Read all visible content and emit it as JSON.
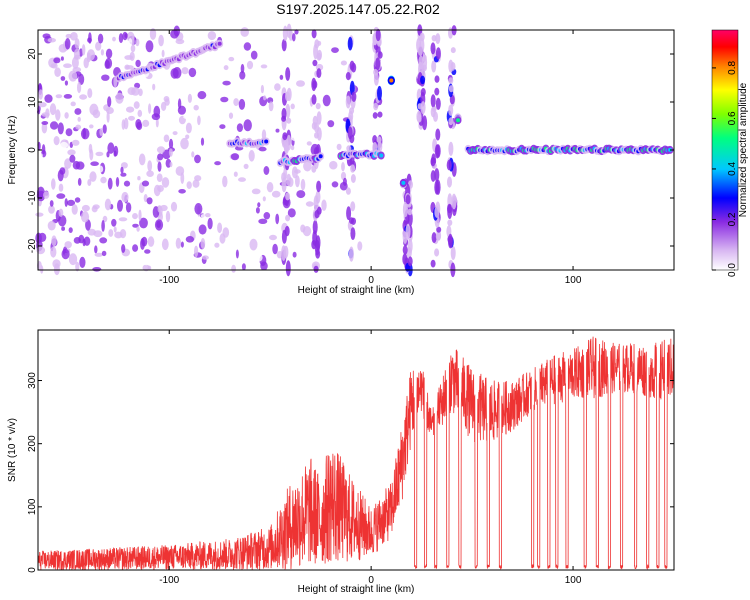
{
  "title": "S197.2025.147.05.22.R02",
  "chart_data": [
    {
      "type": "heatmap",
      "title": "S197.2025.147.05.22.R02",
      "xlabel": "Height of straight line (km)",
      "ylabel": "Frequency (Hz)",
      "xlim": [
        -165,
        150
      ],
      "ylim": [
        -25,
        25
      ],
      "xticks": [
        -100,
        0,
        100
      ],
      "yticks": [
        -20,
        -10,
        0,
        10,
        20
      ],
      "grid": false,
      "colorbar": {
        "label": "Normalized spectral amplitude",
        "range": [
          0,
          0.95
        ],
        "ticks": [
          0.0,
          0.2,
          0.4,
          0.6,
          0.8
        ],
        "colormap": [
          "#ffffff",
          "#d9b8f2",
          "#8a2be2",
          "#0000ff",
          "#00c8ff",
          "#00ff80",
          "#80ff00",
          "#ffff00",
          "#ff8000",
          "#ff0000",
          "#ff0066"
        ]
      },
      "features": [
        {
          "name": "diagonal streak",
          "x": [
            -125,
            -75
          ],
          "y": [
            15,
            22
          ],
          "amplitude": 0.25
        },
        {
          "name": "central band left",
          "x": [
            -70,
            -52
          ],
          "y": [
            1.5,
            1.5
          ],
          "amplitude": 0.35
        },
        {
          "name": "central band blob",
          "x": [
            -45,
            -25
          ],
          "y": [
            -2.5,
            -1.5
          ],
          "amplitude": 0.4
        },
        {
          "name": "central band blob",
          "x": [
            -15,
            5
          ],
          "y": [
            -1,
            -1
          ],
          "amplitude": 0.4
        },
        {
          "name": "spike",
          "x": [
            10,
            10
          ],
          "y": [
            14.5,
            14.5
          ],
          "amplitude": 0.9
        },
        {
          "name": "spike",
          "x": [
            16,
            16
          ],
          "y": [
            -7,
            -7
          ],
          "amplitude": 0.45
        },
        {
          "name": "spike",
          "x": [
            43,
            43
          ],
          "y": [
            6.5,
            6.5
          ],
          "amplitude": 0.45
        },
        {
          "name": "zero band",
          "x": [
            48,
            148
          ],
          "y": [
            0,
            0
          ],
          "amplitude": 0.45
        }
      ]
    },
    {
      "type": "line",
      "xlabel": "Height of straight line (km)",
      "ylabel": "SNR (10 * v/v)",
      "xlim": [
        -165,
        150
      ],
      "ylim": [
        0,
        380
      ],
      "xticks": [
        -100,
        0,
        100
      ],
      "yticks": [
        0,
        100,
        200,
        300
      ],
      "grid": false,
      "color": "#ee3333",
      "envelope": {
        "x": [
          -165,
          -100,
          -70,
          -50,
          -40,
          -30,
          -25,
          -20,
          -10,
          0,
          10,
          15,
          20,
          25,
          30,
          40,
          45,
          50,
          60,
          70,
          80,
          90,
          100,
          110,
          120,
          130,
          140,
          150
        ],
        "ymin": [
          0,
          0,
          0,
          0,
          0,
          5,
          5,
          10,
          10,
          20,
          50,
          100,
          200,
          250,
          200,
          250,
          230,
          200,
          200,
          220,
          250,
          260,
          270,
          270,
          280,
          280,
          270,
          270
        ],
        "ymax": [
          30,
          40,
          50,
          70,
          140,
          180,
          150,
          210,
          150,
          100,
          140,
          230,
          330,
          330,
          250,
          360,
          340,
          320,
          300,
          300,
          320,
          340,
          350,
          370,
          360,
          360,
          360,
          370
        ]
      },
      "dropouts_to_zero": [
        22,
        27,
        32,
        38,
        44,
        52,
        58,
        64,
        80,
        83,
        88,
        92,
        97,
        106,
        112,
        118,
        124,
        131,
        137,
        142,
        146
      ]
    }
  ]
}
